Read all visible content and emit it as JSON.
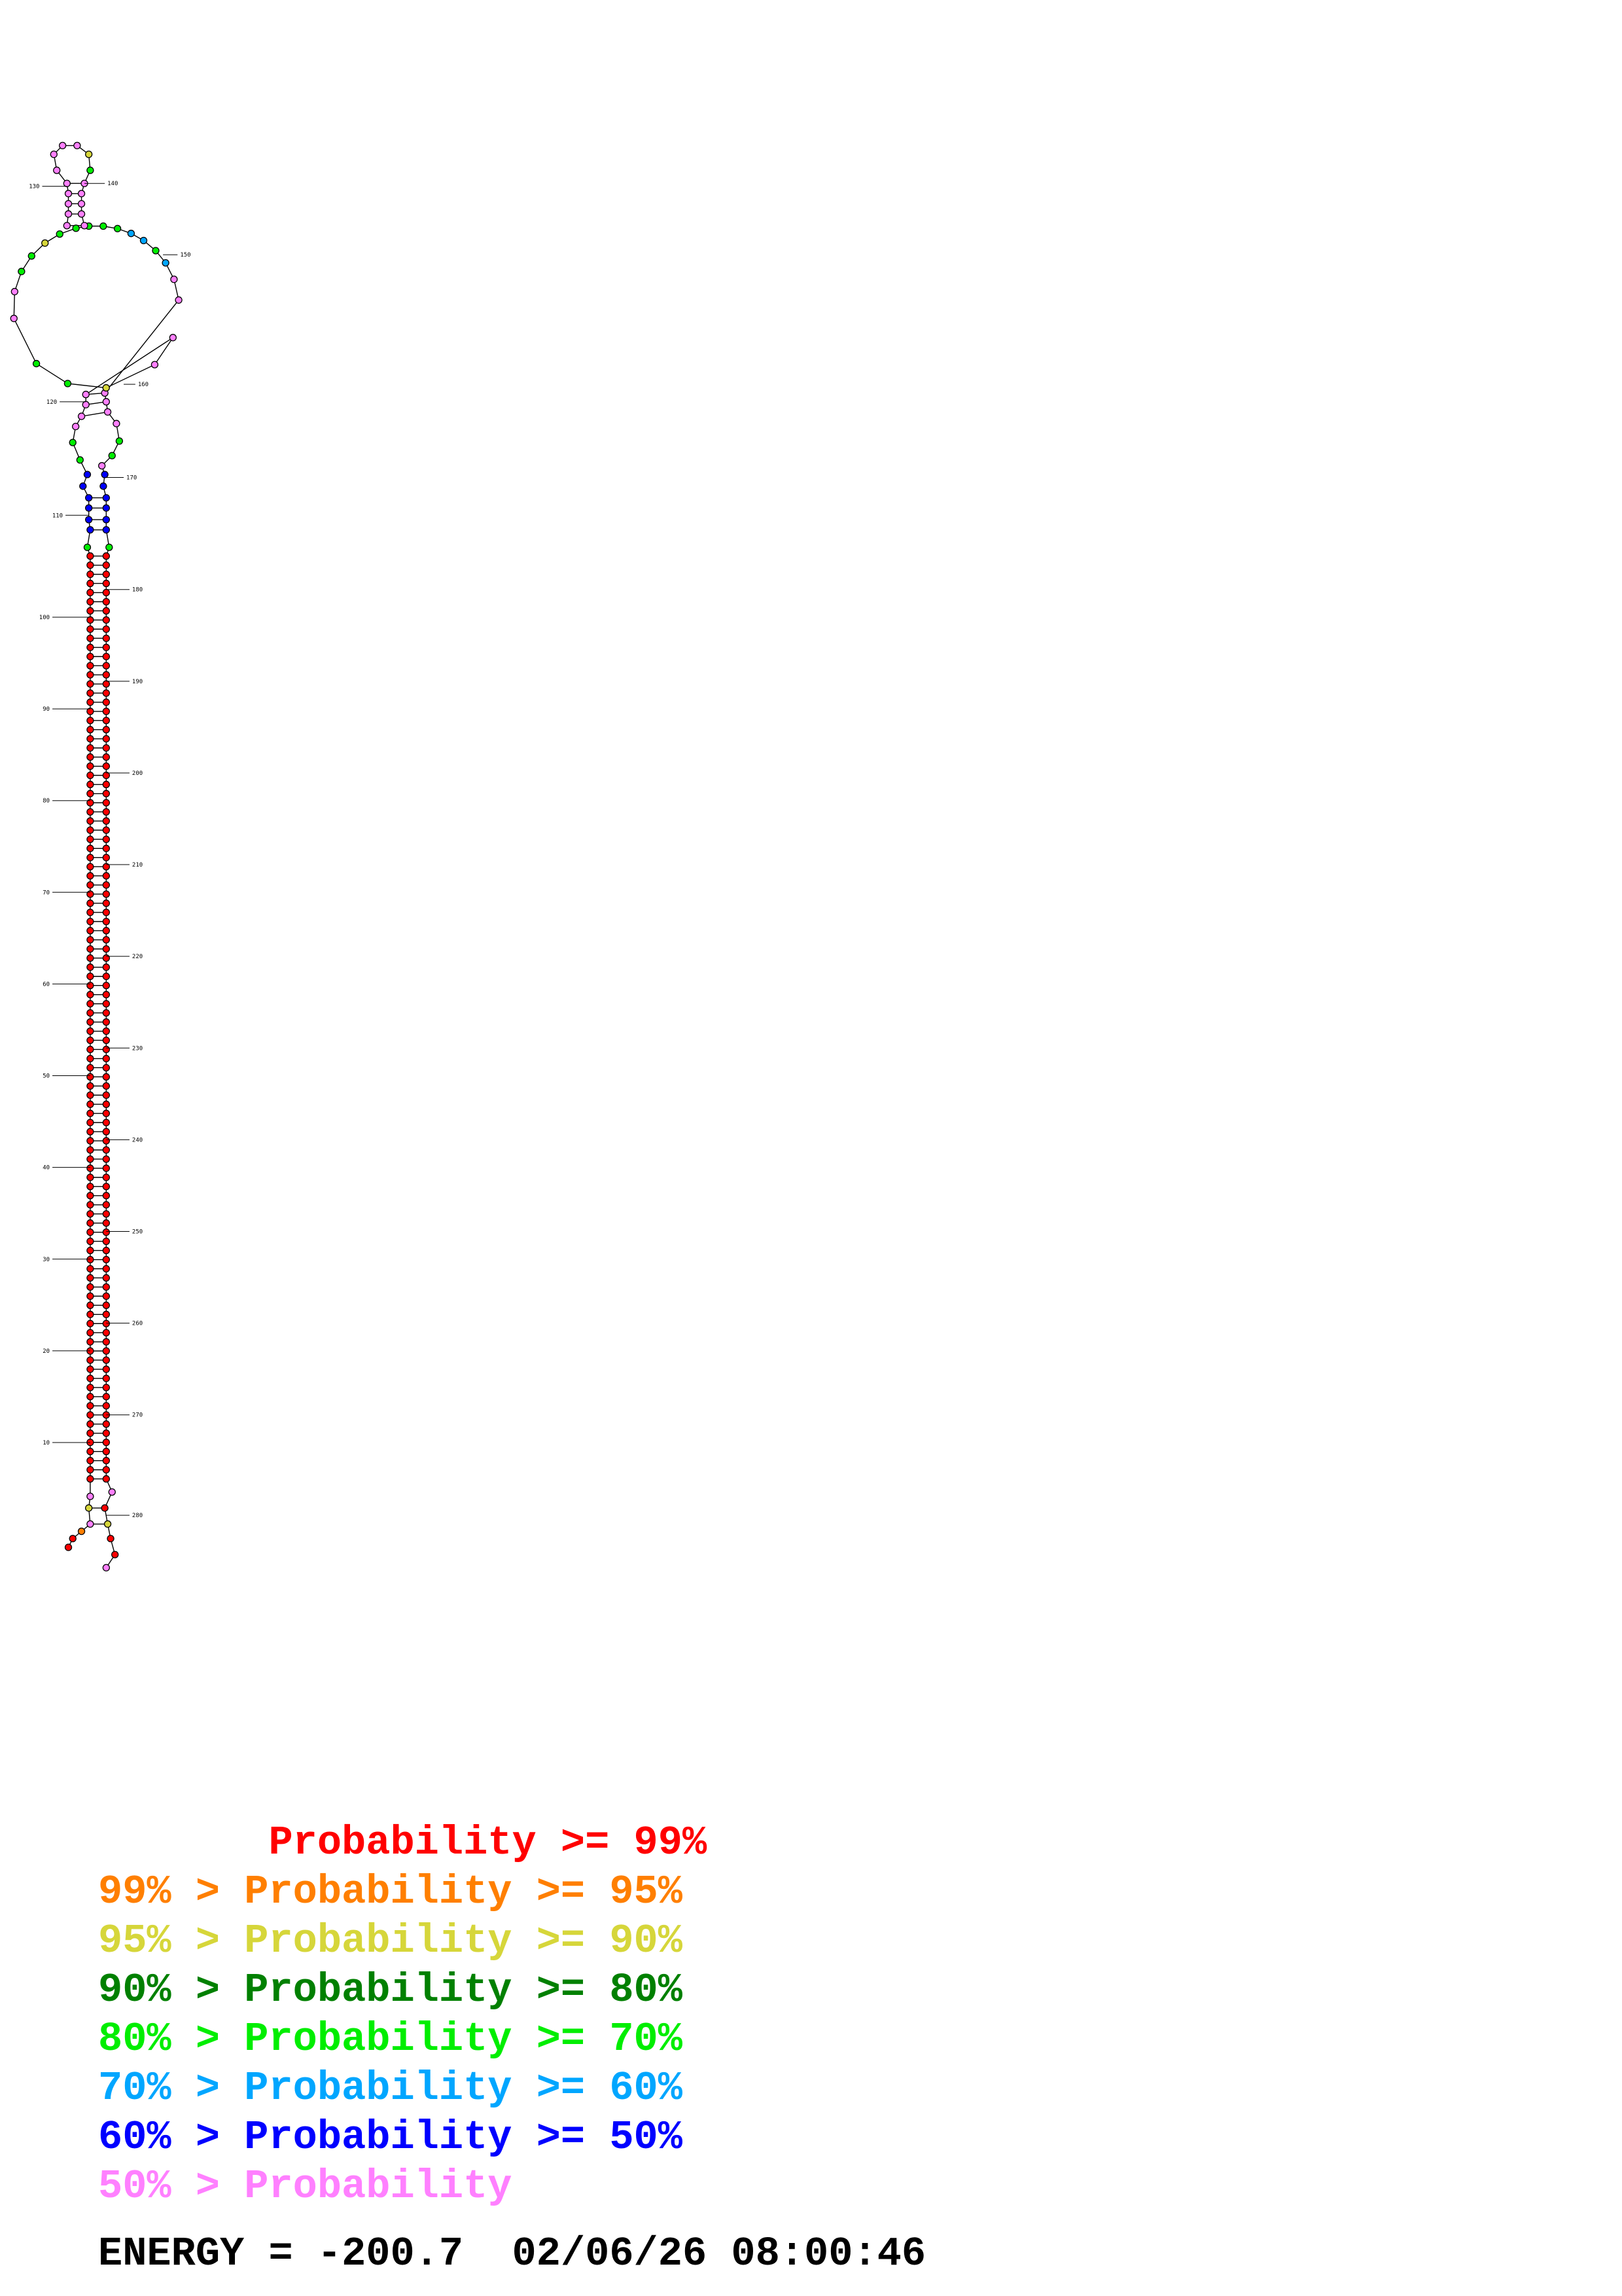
{
  "colors": {
    "p99": "#ff0000",
    "p95": "#ff7f00",
    "p90": "#d6d63a",
    "p80": "#008000",
    "p70": "#00ee00",
    "p60": "#00a6ff",
    "p50": "#0000ff",
    "low": "#ff80ff"
  },
  "legend": [
    {
      "text": "       Probability >= 99%",
      "color": "#ff0000"
    },
    {
      "text": "99% > Probability >= 95%",
      "color": "#ff7f00"
    },
    {
      "text": "95% > Probability >= 90%",
      "color": "#d6d63a"
    },
    {
      "text": "90% > Probability >= 80%",
      "color": "#008000"
    },
    {
      "text": "80% > Probability >= 70%",
      "color": "#00ee00"
    },
    {
      "text": "70% > Probability >= 60%",
      "color": "#00a6ff"
    },
    {
      "text": "60% > Probability >= 50%",
      "color": "#0000ff"
    },
    {
      "text": "50% > Probability",
      "color": "#ff80ff"
    }
  ],
  "footer": {
    "energy_label": "ENERGY = ",
    "energy_value": "-200.7",
    "timestamp": "02/06/26 08:00:46"
  },
  "structure": {
    "sequence_length": 286,
    "tick_labels": [
      "10",
      "20",
      "30",
      "40",
      "50",
      "60",
      "70",
      "80",
      "90",
      "100",
      "110",
      "120",
      "130",
      "140",
      "150",
      "160",
      "170",
      "180",
      "190",
      "200",
      "210",
      "220",
      "230",
      "240",
      "250",
      "260",
      "270",
      "280"
    ]
  }
}
